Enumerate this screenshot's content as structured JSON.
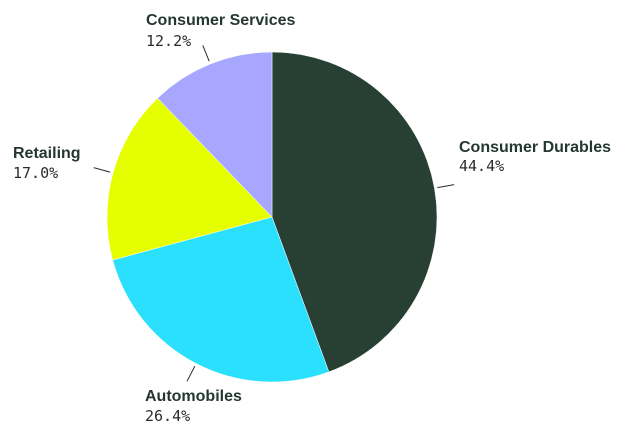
{
  "chart_data": {
    "type": "pie",
    "title": "",
    "start": "12 o'clock",
    "direction": "clockwise",
    "slices": [
      {
        "name": "Consumer Durables",
        "value": 44.4,
        "label": "44.4%",
        "color": "#283f33"
      },
      {
        "name": "Automobiles",
        "value": 26.4,
        "label": "26.4%",
        "color": "#2ae0fd"
      },
      {
        "name": "Retailing",
        "value": 17.0,
        "label": "17.0%",
        "color": "#e6ff00"
      },
      {
        "name": "Consumer Services",
        "value": 12.2,
        "label": "12.2%",
        "color": "#a7a7ff"
      }
    ]
  }
}
